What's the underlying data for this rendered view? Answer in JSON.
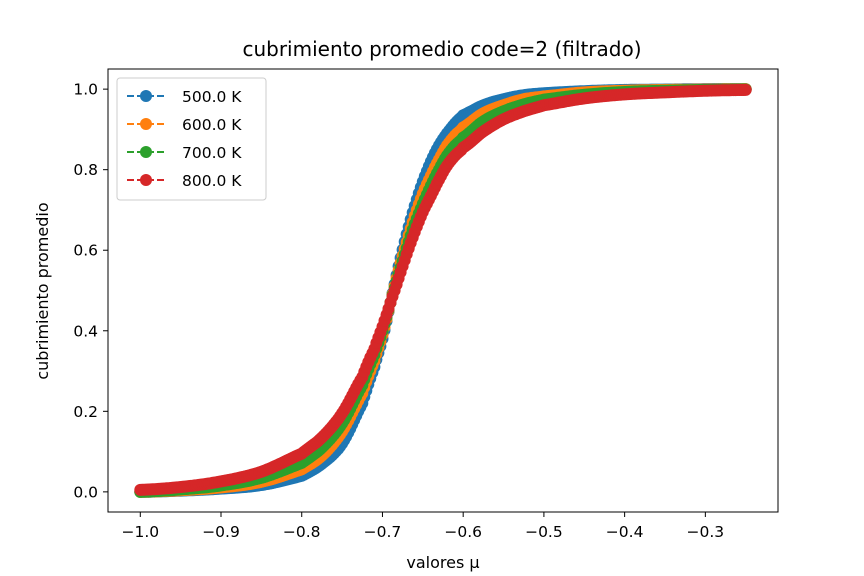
{
  "chart_data": {
    "type": "line",
    "title": "cubrimiento promedio code=2 (filtrado)",
    "xlabel": "valores μ",
    "ylabel": "cubrimiento promedio",
    "xlim": [
      -1.04,
      -0.21
    ],
    "ylim": [
      -0.05,
      1.05
    ],
    "xticks": [
      -1.0,
      -0.9,
      -0.8,
      -0.7,
      -0.6,
      -0.5,
      -0.4,
      -0.3
    ],
    "xtick_labels": [
      "−1.0",
      "−0.9",
      "−0.8",
      "−0.7",
      "−0.6",
      "−0.5",
      "−0.4",
      "−0.3"
    ],
    "yticks": [
      0.0,
      0.2,
      0.4,
      0.6,
      0.8,
      1.0
    ],
    "ytick_labels": [
      "0.0",
      "0.2",
      "0.4",
      "0.6",
      "0.8",
      "1.0"
    ],
    "grid": false,
    "legend_position": "upper-left",
    "x": [
      -1.0,
      -0.95,
      -0.9,
      -0.85,
      -0.8,
      -0.775,
      -0.75,
      -0.725,
      -0.71,
      -0.7,
      -0.69,
      -0.68,
      -0.67,
      -0.66,
      -0.65,
      -0.64,
      -0.63,
      -0.62,
      -0.61,
      -0.6,
      -0.575,
      -0.55,
      -0.525,
      -0.5,
      -0.45,
      -0.4,
      -0.35,
      -0.3,
      -0.25
    ],
    "series": [
      {
        "name": "500.0 K",
        "color": "#1f77b4",
        "values": [
          0.0,
          0.003,
          0.008,
          0.017,
          0.04,
          0.07,
          0.12,
          0.22,
          0.31,
          0.38,
          0.47,
          0.56,
          0.64,
          0.71,
          0.77,
          0.82,
          0.86,
          0.89,
          0.915,
          0.935,
          0.96,
          0.975,
          0.985,
          0.99,
          0.995,
          0.998,
          0.999,
          1.0,
          1.0
        ]
      },
      {
        "name": "600.0 K",
        "color": "#ff7f0e",
        "values": [
          0.0,
          0.004,
          0.011,
          0.025,
          0.056,
          0.09,
          0.15,
          0.245,
          0.325,
          0.39,
          0.47,
          0.55,
          0.62,
          0.685,
          0.74,
          0.785,
          0.825,
          0.86,
          0.885,
          0.905,
          0.94,
          0.96,
          0.975,
          0.982,
          0.992,
          0.996,
          0.998,
          0.999,
          1.0
        ]
      },
      {
        "name": "700.0 K",
        "color": "#2ca02c",
        "values": [
          0.0,
          0.006,
          0.016,
          0.035,
          0.072,
          0.11,
          0.17,
          0.265,
          0.34,
          0.4,
          0.47,
          0.54,
          0.605,
          0.665,
          0.715,
          0.76,
          0.8,
          0.835,
          0.86,
          0.88,
          0.92,
          0.945,
          0.962,
          0.974,
          0.986,
          0.993,
          0.996,
          0.998,
          0.999
        ]
      },
      {
        "name": "800.0 K",
        "color": "#d62728",
        "values": [
          0.005,
          0.012,
          0.026,
          0.05,
          0.095,
          0.135,
          0.195,
          0.285,
          0.355,
          0.41,
          0.47,
          0.53,
          0.59,
          0.645,
          0.695,
          0.735,
          0.775,
          0.81,
          0.835,
          0.855,
          0.895,
          0.925,
          0.945,
          0.96,
          0.977,
          0.987,
          0.992,
          0.996,
          0.998
        ]
      }
    ]
  }
}
